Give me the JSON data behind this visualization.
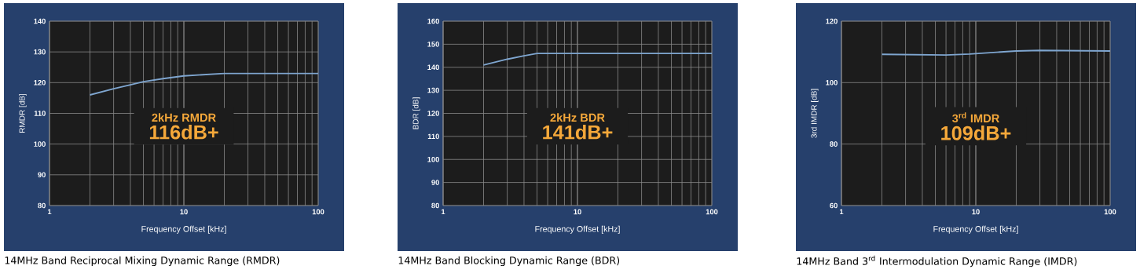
{
  "chart_data": [
    {
      "type": "line",
      "title": "14MHz Band Reciprocal Mixing Dynamic Range (RMDR)",
      "xlabel": "Frequency Offset [kHz]",
      "ylabel": "RMDR [dB]",
      "annotations": [
        "2kHz RMDR",
        "116dB+"
      ],
      "x": [
        2,
        3,
        4,
        5,
        7,
        10,
        20,
        50,
        100
      ],
      "series": [
        {
          "color": "#7fa6d0",
          "values": [
            116,
            118,
            119.3,
            120.3,
            121.3,
            122.2,
            123,
            123,
            123
          ]
        }
      ],
      "log": "x",
      "xlim": [
        1,
        100
      ],
      "xticks": [
        1,
        10,
        100
      ],
      "ylim": [
        80,
        140
      ],
      "yticks": [
        80,
        90,
        100,
        110,
        120,
        130,
        140
      ],
      "grid": true
    },
    {
      "type": "line",
      "title": "14MHz Band Blocking Dynamic Range (BDR)",
      "xlabel": "Frequency Offset [kHz]",
      "ylabel": "BDR [dB]",
      "annotations": [
        "2kHz BDR",
        "141dB+"
      ],
      "x": [
        2,
        3,
        4,
        5,
        10,
        100
      ],
      "series": [
        {
          "color": "#7fa6d0",
          "values": [
            141,
            143.5,
            145,
            146,
            146,
            146
          ]
        }
      ],
      "log": "x",
      "xlim": [
        1,
        100
      ],
      "xticks": [
        1,
        10,
        100
      ],
      "ylim": [
        80,
        160
      ],
      "yticks": [
        80,
        90,
        100,
        110,
        120,
        130,
        140,
        150,
        160
      ],
      "grid": true
    },
    {
      "type": "line",
      "title": "14MHz Band 3$^{rd}$ Intermodulation Dynamic Range (IMDR)",
      "xlabel": "Frequency Offset [kHz]",
      "ylabel": "3rd IMDR [dB]",
      "annotations": [
        "3$^{rd}$ IMDR",
        "109dB+"
      ],
      "x": [
        2,
        6,
        9,
        20,
        30,
        100
      ],
      "series": [
        {
          "color": "#7fa6d0",
          "values": [
            109.2,
            109,
            109.3,
            110.3,
            110.5,
            110.3
          ]
        }
      ],
      "log": "x",
      "xlim": [
        1,
        100
      ],
      "xticks": [
        1,
        10,
        100
      ],
      "ylim": [
        60,
        120
      ],
      "yticks": [
        60,
        80,
        100,
        120
      ],
      "grid": true
    }
  ]
}
